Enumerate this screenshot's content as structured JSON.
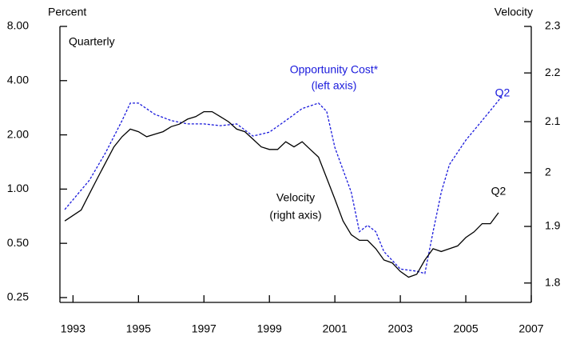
{
  "chart_data": {
    "type": "line",
    "y_label": "Percent",
    "y2_label": "Velocity",
    "subtitle": "Quarterly",
    "ylog": true,
    "y2log": true,
    "xlim": [
      1992.6,
      2007
    ],
    "xticks": [
      1993,
      1995,
      1997,
      1999,
      2001,
      2003,
      2005,
      2007
    ],
    "ylim": [
      0.235,
      8
    ],
    "yticks": [
      {
        "value": 8,
        "label": "8.00"
      },
      {
        "value": 4,
        "label": "4.00"
      },
      {
        "value": 2,
        "label": "2.00"
      },
      {
        "value": 1,
        "label": "1.00"
      },
      {
        "value": 0.5,
        "label": "0.50"
      },
      {
        "value": 0.25,
        "label": "0.25"
      }
    ],
    "y2lim": [
      1.767,
      2.3
    ],
    "y2ticks": [
      1.8,
      1.9,
      2.0,
      2.1,
      2.2,
      2.3
    ],
    "series": [
      {
        "name": "Opportunity Cost*",
        "color": "#1a1adc",
        "dashed": true,
        "x": [
          1992.75,
          1993.5,
          1994.0,
          1994.5,
          1994.75,
          1995.0,
          1995.5,
          1996.0,
          1996.5,
          1997.0,
          1997.5,
          1998.0,
          1998.5,
          1999.0,
          1999.5,
          2000.0,
          2000.5,
          2000.75,
          2001.0,
          2001.5,
          2001.75,
          2002.0,
          2002.25,
          2002.5,
          2003.0,
          2003.5,
          2003.75,
          2004.0,
          2004.25,
          2004.5,
          2005.0,
          2005.5,
          2006.0,
          2006.1
        ],
        "values": [
          0.77,
          1.12,
          1.6,
          2.4,
          3.0,
          3.0,
          2.6,
          2.4,
          2.3,
          2.3,
          2.25,
          2.3,
          1.97,
          2.07,
          2.4,
          2.8,
          3.0,
          2.7,
          1.7,
          0.96,
          0.58,
          0.63,
          0.58,
          0.45,
          0.36,
          0.35,
          0.34,
          0.58,
          0.96,
          1.37,
          1.87,
          2.4,
          3.1,
          3.3
        ]
      },
      {
        "name": "Velocity",
        "color": "#000000",
        "axis": "y2",
        "x": [
          1992.75,
          1993.0,
          1993.25,
          1993.5,
          1993.75,
          1994.0,
          1994.25,
          1994.5,
          1994.75,
          1995.0,
          1995.25,
          1995.5,
          1995.75,
          1996.0,
          1996.25,
          1996.5,
          1996.75,
          1997.0,
          1997.25,
          1997.5,
          1997.75,
          1998.0,
          1998.25,
          1998.5,
          1998.75,
          1999.0,
          1999.25,
          1999.5,
          1999.75,
          2000.0,
          2000.25,
          2000.5,
          2000.75,
          2001.0,
          2001.25,
          2001.5,
          2001.75,
          2002.0,
          2002.25,
          2002.5,
          2002.75,
          2003.0,
          2003.25,
          2003.5,
          2003.75,
          2004.0,
          2004.25,
          2004.5,
          2004.75,
          2005.0,
          2005.25,
          2005.5,
          2005.75,
          2006.0
        ],
        "values": [
          1.91,
          1.92,
          1.93,
          1.96,
          1.99,
          2.02,
          2.05,
          2.07,
          2.085,
          2.08,
          2.07,
          2.075,
          2.08,
          2.09,
          2.095,
          2.105,
          2.11,
          2.12,
          2.12,
          2.11,
          2.1,
          2.085,
          2.08,
          2.065,
          2.05,
          2.045,
          2.045,
          2.06,
          2.05,
          2.06,
          2.045,
          2.03,
          1.99,
          1.95,
          1.91,
          1.885,
          1.875,
          1.875,
          1.86,
          1.84,
          1.835,
          1.82,
          1.81,
          1.815,
          1.84,
          1.86,
          1.855,
          1.86,
          1.865,
          1.88,
          1.89,
          1.905,
          1.905,
          1.925
        ]
      }
    ],
    "annotations": [
      {
        "text": "Opportunity Cost*",
        "color": "#1a1adc"
      },
      {
        "text": "(left axis)",
        "color": "#1a1adc"
      },
      {
        "text": "Q2",
        "color": "#1a1adc"
      },
      {
        "text": "Velocity",
        "color": "#000000"
      },
      {
        "text": "(right axis)",
        "color": "#000000"
      },
      {
        "text": "Q2",
        "color": "#000000"
      }
    ]
  }
}
